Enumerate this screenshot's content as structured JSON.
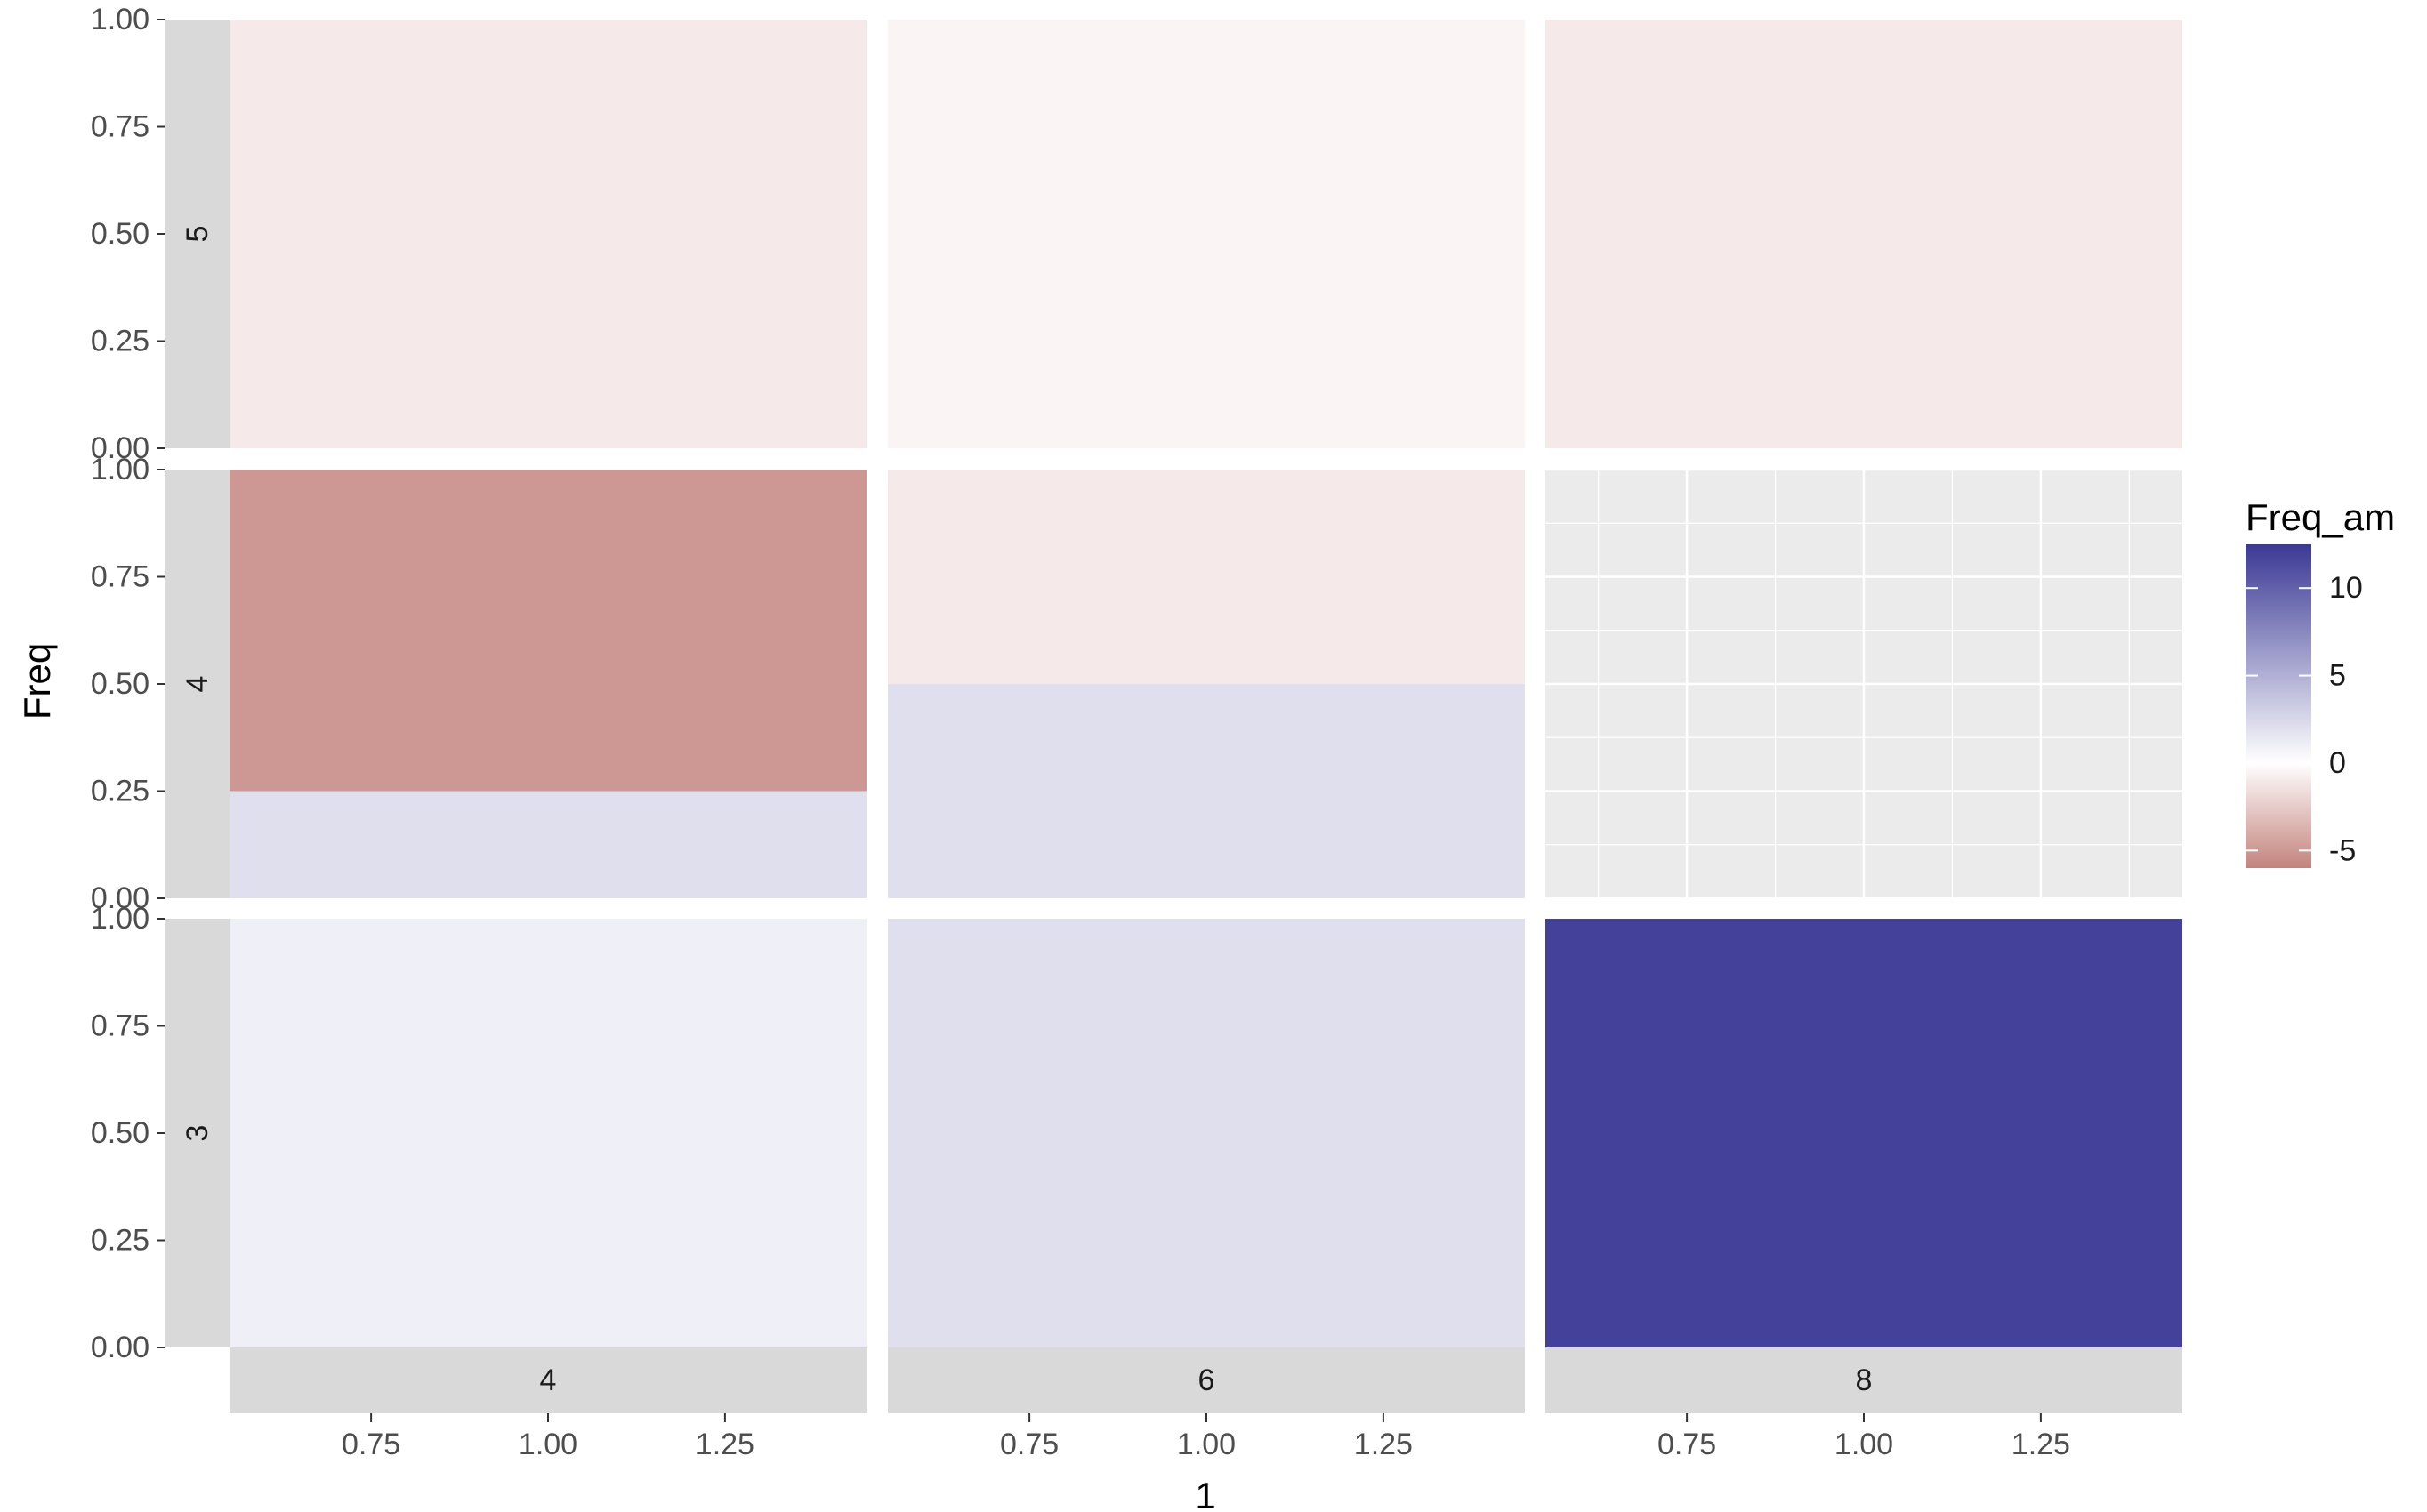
{
  "chart_data": {
    "type": "heatmap",
    "xlabel": "1",
    "ylabel": "Freq",
    "xlim": [
      0.55,
      1.45
    ],
    "ylim": [
      0,
      1
    ],
    "x_ticks": [
      "0.75",
      "1.00",
      "1.25"
    ],
    "y_ticks": [
      "0.00",
      "0.25",
      "0.50",
      "0.75",
      "1.00"
    ],
    "col_facets": [
      "4",
      "6",
      "8"
    ],
    "row_facets": [
      "5",
      "4",
      "3"
    ],
    "grid": true,
    "panel_background": "#ebebeb",
    "strip_fill": "#d9d9d9",
    "legend": {
      "title": "Freq_am",
      "placement": "right",
      "min": -6,
      "max": 12.5,
      "ticks": [
        "10",
        "5",
        "0",
        "-5"
      ],
      "tick_values": [
        10,
        5,
        0,
        -5
      ],
      "low_color": "#c3837d",
      "mid_color": "#ffffff",
      "high_color": "#3b3995"
    },
    "tiles": [
      {
        "row": "5",
        "col": "4",
        "ymin": 0,
        "ymax": 1,
        "value": -1
      },
      {
        "row": "5",
        "col": "6",
        "ymin": 0,
        "ymax": 1,
        "value": -0.5
      },
      {
        "row": "5",
        "col": "8",
        "ymin": 0,
        "ymax": 1,
        "value": -1
      },
      {
        "row": "4",
        "col": "4",
        "ymin": 0,
        "ymax": 0.25,
        "value": 2
      },
      {
        "row": "4",
        "col": "4",
        "ymin": 0.25,
        "ymax": 1,
        "value": -5
      },
      {
        "row": "4",
        "col": "6",
        "ymin": 0,
        "ymax": 0.5,
        "value": 2
      },
      {
        "row": "4",
        "col": "6",
        "ymin": 0.5,
        "ymax": 1,
        "value": -1
      },
      {
        "row": "3",
        "col": "4",
        "ymin": 0,
        "ymax": 1,
        "value": 1
      },
      {
        "row": "3",
        "col": "6",
        "ymin": 0,
        "ymax": 1,
        "value": 2
      },
      {
        "row": "3",
        "col": "8",
        "ymin": 0,
        "ymax": 1,
        "value": 12
      }
    ]
  }
}
